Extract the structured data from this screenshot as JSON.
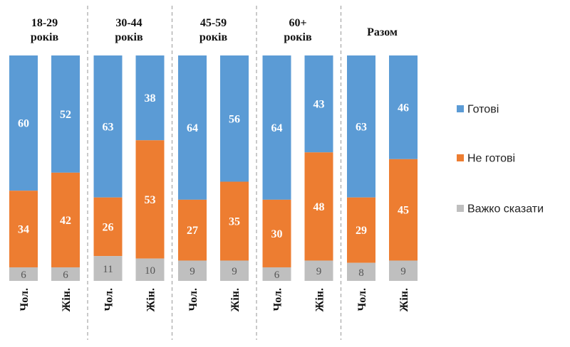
{
  "chart_data": {
    "type": "bar",
    "stacked": true,
    "normalized": true,
    "groups": [
      {
        "label": [
          "18-29",
          "років"
        ],
        "bars": [
          {
            "category": "Чол.",
            "values": [
              60,
              34,
              6
            ]
          },
          {
            "category": "Жін.",
            "values": [
              52,
              42,
              6
            ]
          }
        ]
      },
      {
        "label": [
          "30-44",
          "років"
        ],
        "bars": [
          {
            "category": "Чол.",
            "values": [
              63,
              26,
              11
            ]
          },
          {
            "category": "Жін.",
            "values": [
              38,
              53,
              10
            ]
          }
        ]
      },
      {
        "label": [
          "45-59",
          "років"
        ],
        "bars": [
          {
            "category": "Чол.",
            "values": [
              64,
              27,
              9
            ]
          },
          {
            "category": "Жін.",
            "values": [
              56,
              35,
              9
            ]
          }
        ]
      },
      {
        "label": [
          "60+",
          "років"
        ],
        "bars": [
          {
            "category": "Чол.",
            "values": [
              64,
              30,
              6
            ]
          },
          {
            "category": "Жін.",
            "values": [
              43,
              48,
              9
            ]
          }
        ]
      },
      {
        "label": [
          "Разом"
        ],
        "bars": [
          {
            "category": "Чол.",
            "values": [
              63,
              29,
              8
            ]
          },
          {
            "category": "Жін.",
            "values": [
              46,
              45,
              9
            ]
          }
        ]
      }
    ],
    "series": [
      {
        "name": "Готові",
        "color": "#5b9bd5"
      },
      {
        "name": "Не готові",
        "color": "#ed7d31"
      },
      {
        "name": "Важко сказати",
        "color": "#bfbfbf"
      }
    ],
    "legend_position": "right",
    "grid": false
  }
}
